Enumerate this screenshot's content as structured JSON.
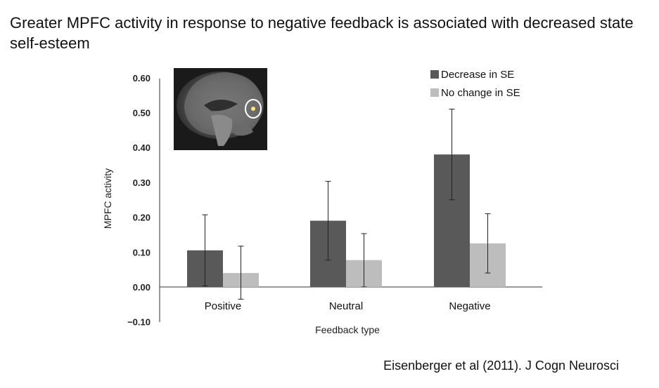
{
  "slide": {
    "title": "Greater MPFC activity in response to negative feedback is associated with decreased state self-esteem",
    "citation": "Eisenberger et al (2011). J Cogn Neurosci"
  },
  "inset": {
    "description": "brain-mri-sagittal-inset"
  },
  "chart_data": {
    "type": "bar",
    "title": "",
    "xlabel": "Feedback type",
    "ylabel": "MPFC activity",
    "categories": [
      "Positive",
      "Neutral",
      "Negative"
    ],
    "ylim": [
      -0.1,
      0.6
    ],
    "yticks": [
      "0.60",
      "0.50",
      "0.40",
      "0.30",
      "0.20",
      "0.10",
      "0.00",
      "−0.10"
    ],
    "ytick_values": [
      0.6,
      0.5,
      0.4,
      0.3,
      0.2,
      0.1,
      0.0,
      -0.1
    ],
    "series": [
      {
        "name": "Decrease in SE",
        "color": "#595959",
        "values": [
          0.105,
          0.19,
          0.38
        ],
        "err_low": [
          0.003,
          0.077,
          0.25
        ],
        "err_high": [
          0.207,
          0.303,
          0.51
        ]
      },
      {
        "name": "No change in SE",
        "color": "#bdbdbd",
        "values": [
          0.04,
          0.077,
          0.125
        ],
        "err_low": [
          -0.035,
          0.0,
          0.04
        ],
        "err_high": [
          0.117,
          0.153,
          0.21
        ]
      }
    ],
    "legend_position": "top-right"
  }
}
